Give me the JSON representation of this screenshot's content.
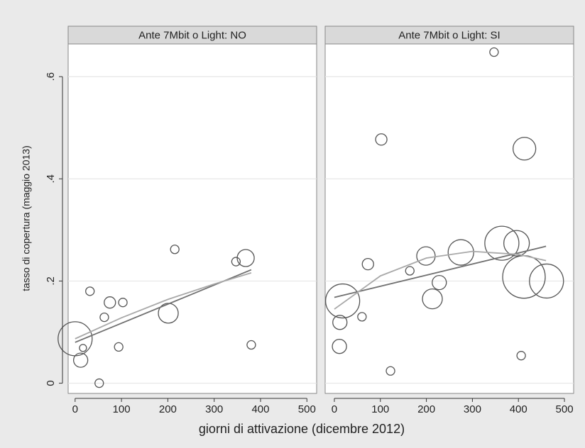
{
  "chart_data": {
    "type": "scatter",
    "y_label": "tasso di copertura (maggio 2013)",
    "x_label": "giorni di attivazione (dicembre 2012)",
    "ylim": [
      -0.02,
      0.664
    ],
    "yticks": [
      0,
      {
        "value": 0.2,
        "label": ".2"
      },
      {
        "value": 0.4,
        "label": ".4"
      },
      {
        "value": 0.6,
        "label": ".6"
      }
    ],
    "grid": true,
    "marker_color": "#555555",
    "line_colors": [
      "#707070",
      "#a8a8a8"
    ],
    "panels": [
      {
        "title": "Ante 7Mbit o Light: NO",
        "xlim": [
          -15,
          521
        ],
        "xticks": [
          0,
          100,
          200,
          300,
          400,
          500
        ],
        "x": [
          0,
          17,
          12,
          32,
          63,
          75,
          103,
          94,
          52,
          201,
          215,
          347,
          368,
          380
        ],
        "y": [
          0.087,
          0.069,
          0.045,
          0.18,
          0.129,
          0.158,
          0.158,
          0.071,
          0,
          0.137,
          0.262,
          0.238,
          0.245,
          0.075
        ],
        "sizes": [
          24,
          5,
          10,
          6,
          6,
          8,
          6,
          6,
          6,
          14,
          6,
          6,
          12,
          6
        ],
        "fit_lines": [
          {
            "x": [
              0,
              380
            ],
            "y": [
              0.08,
              0.222
            ]
          },
          {
            "x": [
              0,
              100,
              200,
              300,
              380
            ],
            "y": [
              0.087,
              0.128,
              0.164,
              0.194,
              0.216
            ]
          }
        ]
      },
      {
        "title": "Ante 7Mbit o Light: SI",
        "xlim": [
          -20,
          520
        ],
        "xticks": [
          0,
          100,
          200,
          300,
          400,
          500
        ],
        "x": [
          18,
          12,
          11,
          60,
          73,
          102,
          122,
          164,
          199,
          213,
          228,
          275,
          347,
          364,
          396,
          412,
          413,
          406,
          461
        ],
        "y": [
          0.161,
          0.119,
          0.072,
          0.13,
          0.233,
          0.477,
          0.024,
          0.22,
          0.249,
          0.165,
          0.197,
          0.256,
          0.648,
          0.274,
          0.274,
          0.208,
          0.459,
          0.054,
          0.2
        ],
        "sizes": [
          24,
          10,
          10,
          6,
          8,
          8,
          6,
          6,
          13,
          14,
          10,
          18,
          6,
          24,
          18,
          30,
          16,
          6,
          24
        ],
        "fit_lines": [
          {
            "x": [
              0,
              460
            ],
            "y": [
              0.168,
              0.268
            ]
          },
          {
            "x": [
              0,
              100,
              200,
              300,
              400,
              460
            ],
            "y": [
              0.145,
              0.21,
              0.245,
              0.258,
              0.252,
              0.24
            ]
          }
        ]
      }
    ]
  }
}
